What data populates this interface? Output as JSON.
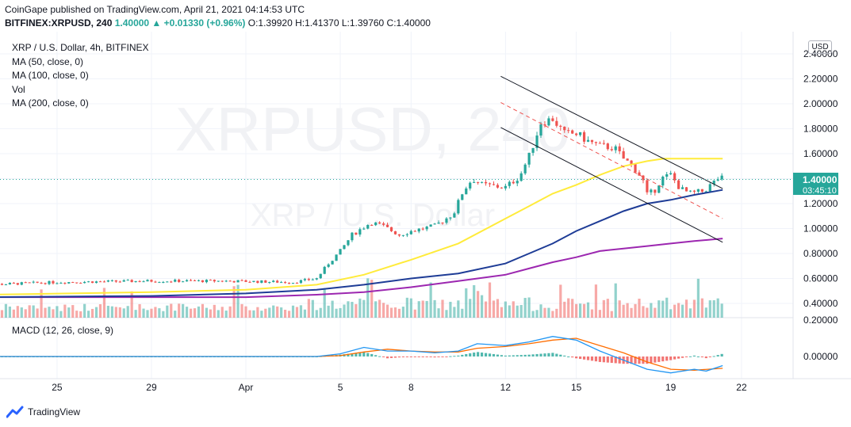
{
  "header": {
    "line1": "CoinGape published on TradingView.com, April 21, 2021 04:14:53 UTC",
    "symbol": "BITFINEX:XRPUSD, 240",
    "change": "1.40000 ▲ +0.01330 (+0.96%)",
    "ohlc": "O:1.39920 H:1.41370 L:1.39760 C:1.40000"
  },
  "legend": {
    "title": "XRP / U.S. Dollar, 4h, BITFINEX",
    "ma50": "MA (50, close, 0)",
    "ma100": "MA (100, close, 0)",
    "vol": "Vol",
    "ma200": "MA (200, close, 0)"
  },
  "watermark": {
    "big": "XRPUSD, 240",
    "small": "XRP / U.S. Dollar"
  },
  "currency_button": "USD",
  "price_label": {
    "price": "1.40000",
    "countdown": "03:45:10"
  },
  "macd_label": "MACD (12, 26, close, 9)",
  "footer": {
    "brand": "TradingView"
  },
  "colors": {
    "up": "#26a69a",
    "down": "#ef5350",
    "ma50": "#ffeb3b",
    "ma100": "#1e3c96",
    "ma200": "#9c27b0",
    "macd": "#2196f3",
    "signal": "#ff6d00",
    "channel": "#131722"
  },
  "chart_data": {
    "type": "candlestick",
    "y_axis": [
      "2.40000",
      "2.20000",
      "2.00000",
      "1.80000",
      "1.60000",
      "1.40000",
      "1.20000",
      "1.00000",
      "0.80000",
      "0.60000",
      "0.40000"
    ],
    "macd_axis": [
      "0.20000",
      "0.00000"
    ],
    "x_ticks": [
      "22",
      "25",
      "29",
      "Apr",
      "5",
      "8",
      "12",
      "15",
      "19",
      "22"
    ],
    "x_tick_days": [
      -10,
      -7,
      -3,
      1,
      5,
      8,
      12,
      15,
      19,
      22
    ],
    "price_control": [
      [
        -10,
        0.55
      ],
      [
        -7,
        0.57
      ],
      [
        -3,
        0.58
      ],
      [
        0,
        0.58
      ],
      [
        3,
        0.57
      ],
      [
        4,
        0.6
      ],
      [
        4.5,
        0.72
      ],
      [
        5,
        0.82
      ],
      [
        5.5,
        0.95
      ],
      [
        6.3,
        1.05
      ],
      [
        6.8,
        1.02
      ],
      [
        7.5,
        0.95
      ],
      [
        8,
        0.98
      ],
      [
        9,
        1.02
      ],
      [
        9.8,
        1.12
      ],
      [
        10.2,
        1.3
      ],
      [
        10.6,
        1.4
      ],
      [
        11,
        1.35
      ],
      [
        12,
        1.33
      ],
      [
        12.6,
        1.42
      ],
      [
        13,
        1.58
      ],
      [
        13.5,
        1.85
      ],
      [
        14.0,
        1.88
      ],
      [
        14.5,
        1.76
      ],
      [
        15,
        1.76
      ],
      [
        15.5,
        1.7
      ],
      [
        16,
        1.66
      ],
      [
        16.6,
        1.65
      ],
      [
        17.0,
        1.56
      ],
      [
        17.4,
        1.5
      ],
      [
        17.8,
        1.4
      ],
      [
        18.0,
        1.27
      ],
      [
        18.3,
        1.3
      ],
      [
        18.6,
        1.4
      ],
      [
        19,
        1.43
      ],
      [
        19.4,
        1.32
      ],
      [
        19.8,
        1.28
      ],
      [
        20.4,
        1.3
      ],
      [
        21.0,
        1.4
      ]
    ],
    "ma50": [
      [
        -10,
        0.47
      ],
      [
        -3,
        0.49
      ],
      [
        1,
        0.51
      ],
      [
        4,
        0.55
      ],
      [
        6,
        0.63
      ],
      [
        8,
        0.75
      ],
      [
        10,
        0.88
      ],
      [
        12,
        1.08
      ],
      [
        13,
        1.18
      ],
      [
        14,
        1.28
      ],
      [
        15,
        1.35
      ],
      [
        16,
        1.43
      ],
      [
        17,
        1.5
      ],
      [
        18,
        1.54
      ],
      [
        18.7,
        1.56
      ],
      [
        19.5,
        1.56
      ],
      [
        21.2,
        1.56
      ]
    ],
    "ma100": [
      [
        -10,
        0.45
      ],
      [
        -3,
        0.46
      ],
      [
        1,
        0.48
      ],
      [
        4,
        0.51
      ],
      [
        6,
        0.55
      ],
      [
        8,
        0.6
      ],
      [
        10,
        0.64
      ],
      [
        12,
        0.72
      ],
      [
        13,
        0.8
      ],
      [
        14,
        0.88
      ],
      [
        15,
        0.98
      ],
      [
        16,
        1.06
      ],
      [
        17,
        1.14
      ],
      [
        18,
        1.2
      ],
      [
        19,
        1.23
      ],
      [
        20,
        1.27
      ],
      [
        21.2,
        1.31
      ]
    ],
    "ma200": [
      [
        -10,
        0.45
      ],
      [
        1,
        0.45
      ],
      [
        4,
        0.47
      ],
      [
        6,
        0.49
      ],
      [
        8,
        0.53
      ],
      [
        10,
        0.58
      ],
      [
        12,
        0.63
      ],
      [
        13,
        0.68
      ],
      [
        14,
        0.73
      ],
      [
        15,
        0.77
      ],
      [
        16,
        0.82
      ],
      [
        17,
        0.84
      ],
      [
        18,
        0.86
      ],
      [
        19,
        0.88
      ],
      [
        20,
        0.9
      ],
      [
        21.2,
        0.92
      ]
    ],
    "channel_upper": [
      [
        11.8,
        2.22
      ],
      [
        21.2,
        1.32
      ]
    ],
    "channel_lower": [
      [
        11.8,
        1.81
      ],
      [
        21.2,
        0.89
      ]
    ],
    "channel_mid": [
      [
        11.8,
        2.01
      ],
      [
        21.2,
        1.08
      ]
    ],
    "macd": [
      [
        -10,
        0.0
      ],
      [
        4,
        0.0
      ],
      [
        5,
        0.015
      ],
      [
        6,
        0.05
      ],
      [
        7,
        0.03
      ],
      [
        8,
        0.03
      ],
      [
        9,
        0.02
      ],
      [
        10,
        0.03
      ],
      [
        10.8,
        0.07
      ],
      [
        12,
        0.06
      ],
      [
        13,
        0.08
      ],
      [
        14,
        0.11
      ],
      [
        15,
        0.09
      ],
      [
        16,
        0.03
      ],
      [
        17,
        -0.02
      ],
      [
        18,
        -0.07
      ],
      [
        19,
        -0.09
      ],
      [
        20,
        -0.07
      ],
      [
        20.5,
        -0.08
      ],
      [
        21.2,
        -0.05
      ]
    ],
    "signal": [
      [
        -10,
        0.0
      ],
      [
        4,
        0.0
      ],
      [
        5,
        0.005
      ],
      [
        6,
        0.025
      ],
      [
        7,
        0.04
      ],
      [
        8,
        0.03
      ],
      [
        9,
        0.025
      ],
      [
        10,
        0.025
      ],
      [
        10.8,
        0.045
      ],
      [
        12,
        0.055
      ],
      [
        13,
        0.07
      ],
      [
        14,
        0.09
      ],
      [
        15,
        0.1
      ],
      [
        16,
        0.06
      ],
      [
        17,
        0.02
      ],
      [
        18,
        -0.03
      ],
      [
        19,
        -0.07
      ],
      [
        20,
        -0.075
      ],
      [
        21.2,
        -0.065
      ]
    ]
  }
}
